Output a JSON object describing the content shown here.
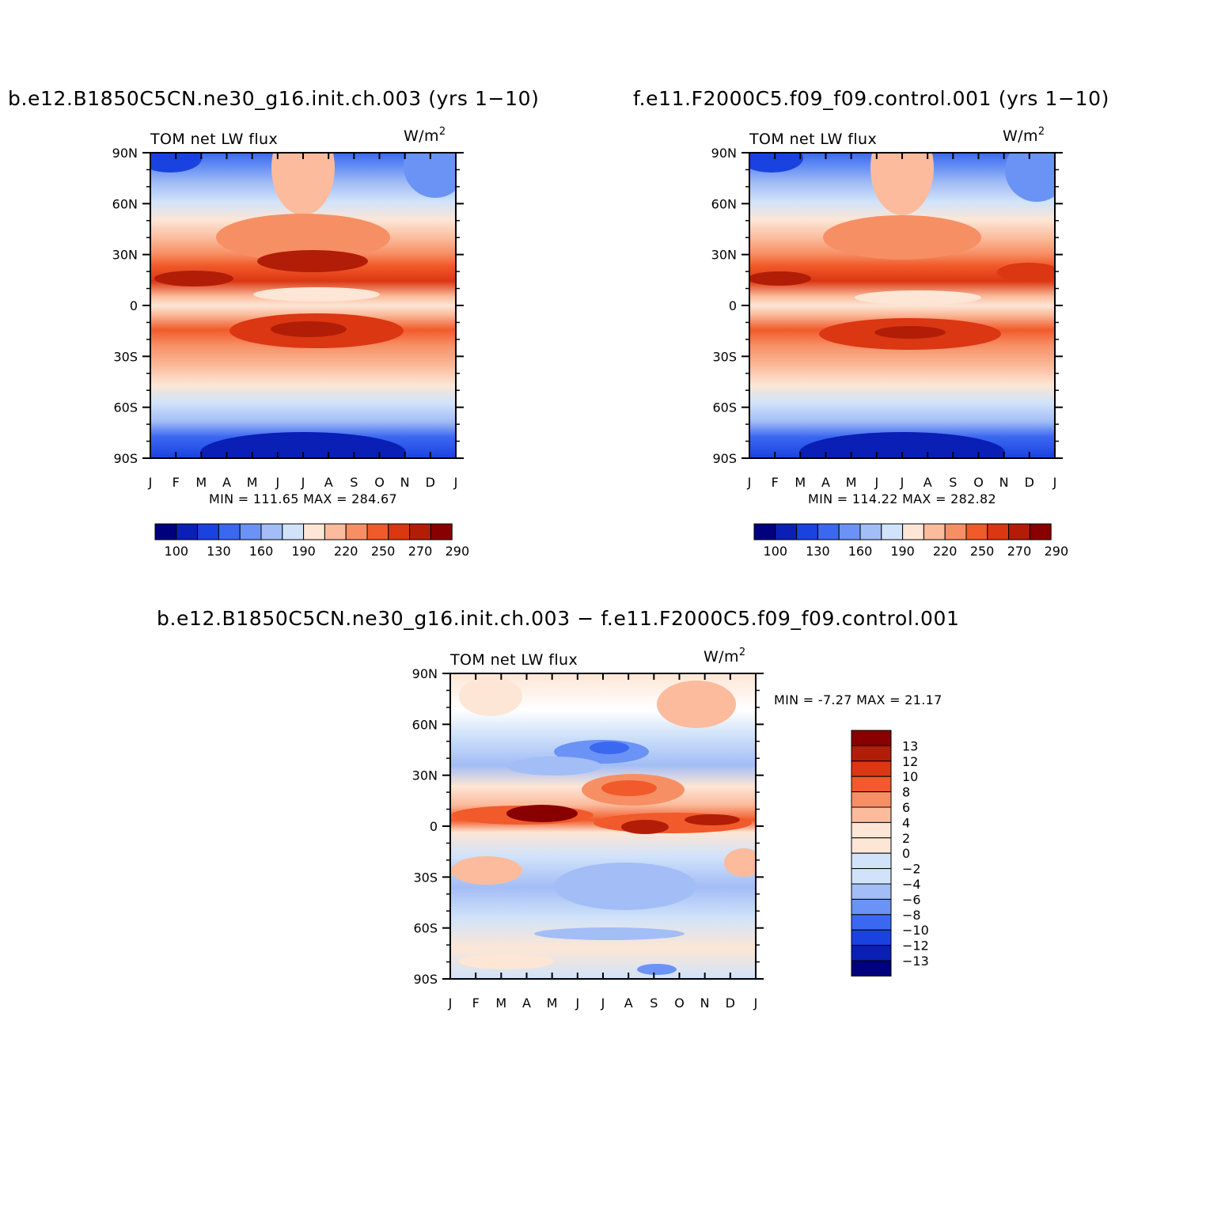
{
  "panels": {
    "left": {
      "title": "b.e12.B1850C5CN.ne30_g16.init.ch.003 (yrs 1-10)",
      "subtitle": "TOM net LW flux",
      "units": "W/m",
      "units_sup": "2",
      "stats": "MIN = 111.65 MAX = 284.67"
    },
    "right": {
      "title": "f.e11.F2000C5.f09_f09.control.001 (yrs 1-10)",
      "subtitle": "TOM net LW flux",
      "units": "W/m",
      "units_sup": "2",
      "stats": "MIN = 114.22 MAX = 282.82"
    },
    "diff": {
      "title": "b.e12.B1850C5CN.ne30_g16.init.ch.003 - f.e11.F2000C5.f09_f09.control.001",
      "subtitle": "TOM net LW flux",
      "units": "W/m",
      "units_sup": "2",
      "stats": "MIN =   -7.27 MAX =   21.17"
    }
  },
  "chart_data": [
    {
      "type": "heatmap",
      "title": "b.e12.B1850C5CN.ne30_g16.init.ch.003 (yrs 1-10)",
      "subtitle": "TOM net LW flux",
      "units": "W/m2",
      "x": [
        "J",
        "F",
        "M",
        "A",
        "M",
        "J",
        "J",
        "A",
        "S",
        "O",
        "N",
        "D",
        "J"
      ],
      "y": [
        "90N",
        "60N",
        "30N",
        "0",
        "30S",
        "60S",
        "90S"
      ],
      "min": 111.65,
      "max": 284.67,
      "colorbar_labels": [
        "100",
        "130",
        "160",
        "190",
        "220",
        "250",
        "270",
        "290"
      ],
      "colorbar_colors": [
        "#00007f",
        "#0a1fb5",
        "#1a42e0",
        "#3b68f0",
        "#6a93f5",
        "#a3bdf6",
        "#d0e3fa",
        "#fde6d5",
        "#fbbb9c",
        "#f78f64",
        "#f15a2a",
        "#db3712",
        "#b21d07",
        "#880000"
      ]
    },
    {
      "type": "heatmap",
      "title": "f.e11.F2000C5.f09_f09.control.001 (yrs 1-10)",
      "subtitle": "TOM net LW flux",
      "units": "W/m2",
      "x": [
        "J",
        "F",
        "M",
        "A",
        "M",
        "J",
        "J",
        "A",
        "S",
        "O",
        "N",
        "D",
        "J"
      ],
      "y": [
        "90N",
        "60N",
        "30N",
        "0",
        "30S",
        "60S",
        "90S"
      ],
      "min": 114.22,
      "max": 282.82,
      "colorbar_labels": [
        "100",
        "130",
        "160",
        "190",
        "220",
        "250",
        "270",
        "290"
      ],
      "colorbar_colors": [
        "#00007f",
        "#0a1fb5",
        "#1a42e0",
        "#3b68f0",
        "#6a93f5",
        "#a3bdf6",
        "#d0e3fa",
        "#fde6d5",
        "#fbbb9c",
        "#f78f64",
        "#f15a2a",
        "#db3712",
        "#b21d07",
        "#880000"
      ]
    },
    {
      "type": "heatmap",
      "title": "b.e12.B1850C5CN.ne30_g16.init.ch.003 - f.e11.F2000C5.f09_f09.control.001",
      "subtitle": "TOM net LW flux",
      "units": "W/m2",
      "x": [
        "J",
        "F",
        "M",
        "A",
        "M",
        "J",
        "J",
        "A",
        "S",
        "O",
        "N",
        "D",
        "J"
      ],
      "y": [
        "90N",
        "60N",
        "30N",
        "0",
        "30S",
        "60S",
        "90S"
      ],
      "min": -7.27,
      "max": 21.17,
      "colorbar_labels": [
        "13",
        "12",
        "10",
        "8",
        "6",
        "4",
        "2",
        "0",
        "-2",
        "-4",
        "-6",
        "-8",
        "-10",
        "-12",
        "-13"
      ],
      "colorbar_colors": [
        "#880000",
        "#b21d07",
        "#db3712",
        "#f15a2a",
        "#f78f64",
        "#fbbb9c",
        "#fde6d5",
        "#ffffff",
        "#d0e3fa",
        "#a3bdf6",
        "#6a93f5",
        "#3b68f0",
        "#1a42e0",
        "#0a1fb5",
        "#00007f"
      ]
    }
  ]
}
